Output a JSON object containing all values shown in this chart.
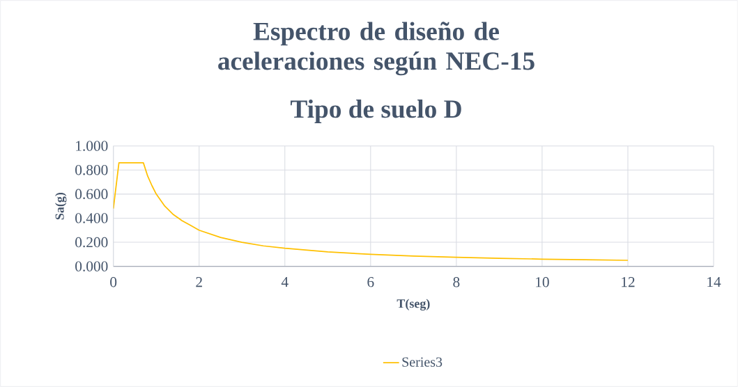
{
  "chart_data": {
    "type": "line",
    "title": "Espectro de diseño de aceleraciones según NEC-15",
    "subtitle": "Tipo de suelo D",
    "xlabel": "T(seg)",
    "ylabel": "Sa(g)",
    "x": [
      0,
      0.13,
      0.7,
      0.8,
      0.9,
      1.0,
      1.2,
      1.4,
      1.6,
      1.8,
      2,
      2.5,
      3,
      3.5,
      4,
      5,
      6,
      7,
      8,
      9,
      10,
      11,
      12
    ],
    "series": [
      {
        "name": "Series3",
        "color": "#ffc000",
        "values": [
          0.48,
          0.86,
          0.86,
          0.75,
          0.67,
          0.6,
          0.5,
          0.43,
          0.38,
          0.34,
          0.3,
          0.24,
          0.2,
          0.17,
          0.15,
          0.12,
          0.1,
          0.086,
          0.075,
          0.067,
          0.06,
          0.055,
          0.05
        ]
      }
    ],
    "xlim": [
      0,
      14
    ],
    "xticks": [
      0,
      2,
      4,
      6,
      8,
      10,
      12,
      14
    ],
    "ylim": [
      0,
      1
    ],
    "yticks": [
      {
        "value": 0,
        "label": "0.000"
      },
      {
        "value": 0.2,
        "label": "0.200"
      },
      {
        "value": 0.4,
        "label": "0.400"
      },
      {
        "value": 0.6,
        "label": "0.600"
      },
      {
        "value": 0.8,
        "label": "0.800"
      },
      {
        "value": 1,
        "label": "1.000"
      }
    ],
    "grid": true,
    "legend": "bottom",
    "marker": "none",
    "line_style": "solid"
  }
}
